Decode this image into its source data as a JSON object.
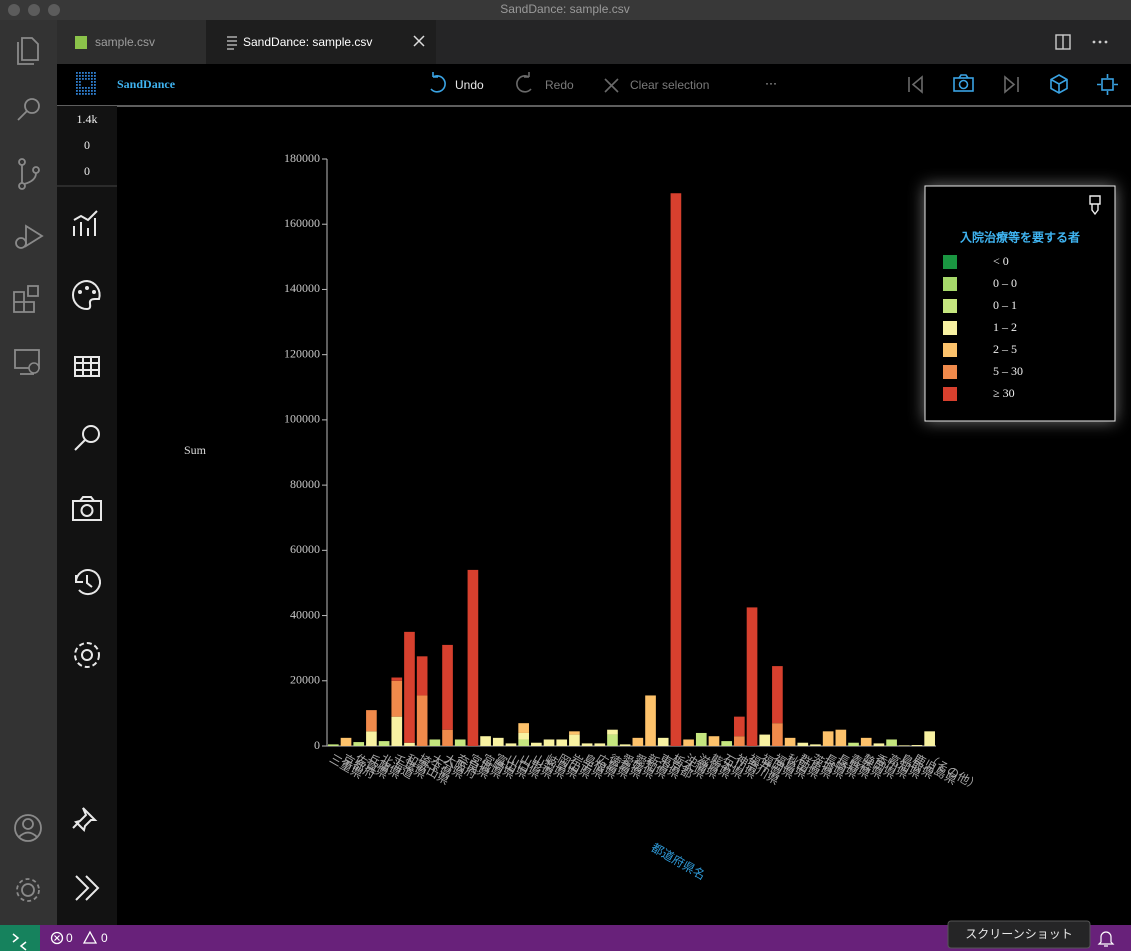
{
  "window_title": "SandDance: sample.csv",
  "tabs": [
    "sample.csv",
    "SandDance: sample.csv"
  ],
  "toolbar": {
    "brand": "SandDance",
    "undo": "Undo",
    "redo": "Redo",
    "clear": "Clear selection",
    "more": "···"
  },
  "counts": [
    "1.4k",
    "0",
    "0"
  ],
  "status": {
    "errors": "0",
    "warnings": "0"
  },
  "tooltip": "スクリーンショット",
  "chart_data": {
    "type": "bar",
    "stacked": true,
    "y_label": "Sum",
    "x_label": "都道府県名",
    "legend_title": "入院治療等を要する者",
    "legend": "upper right",
    "grid": false,
    "ylim": [
      0,
      180000
    ],
    "yticks": [
      0,
      20000,
      40000,
      60000,
      80000,
      100000,
      120000,
      140000,
      160000,
      180000
    ],
    "categories": [
      "三重県",
      "京都府",
      "佐賀県",
      "兵庫県",
      "北海道",
      "千葉県",
      "和歌山県",
      "埼玉県",
      "大分県",
      "大阪府",
      "奈良県",
      "宮城県",
      "宮崎県",
      "富山県",
      "山口県",
      "山形県",
      "山梨県",
      "岐阜県",
      "岡山県",
      "岩手県",
      "島根県",
      "広島県",
      "徳島県",
      "愛媛県",
      "愛知県",
      "新潟県",
      "東京都",
      "栃木県",
      "沖縄県",
      "滋賀県",
      "熊本県",
      "石川県",
      "神奈川県",
      "福井県",
      "福岡県",
      "福島県",
      "秋田県",
      "群馬県",
      "茨城県",
      "長崎県",
      "長野県",
      "青森県",
      "静岡県",
      "香川県",
      "高知県",
      "鳥取県",
      "鹿児島県",
      "（その他）"
    ],
    "series": [
      {
        "name": "< 0",
        "color": "#1a9641",
        "values": [
          0,
          0,
          0,
          0,
          0,
          0,
          0,
          0,
          0,
          0,
          0,
          0,
          0,
          0,
          0,
          0,
          0,
          0,
          0,
          0,
          0,
          0,
          0,
          0,
          0,
          0,
          0,
          0,
          0,
          0,
          0,
          0,
          0,
          0,
          0,
          0,
          0,
          0,
          0,
          0,
          0,
          0,
          0,
          0,
          0,
          0,
          0,
          0
        ]
      },
      {
        "name": "0 – 0",
        "color": "#a6d96a",
        "values": [
          0,
          0,
          0,
          0,
          0,
          0,
          0,
          0,
          0,
          0,
          0,
          0,
          0,
          0,
          0,
          0,
          0,
          0,
          0,
          0,
          0,
          0,
          0,
          0,
          0,
          0,
          0,
          0,
          0,
          0,
          0,
          0,
          0,
          0,
          0,
          0,
          0,
          0,
          0,
          0,
          0,
          0,
          0,
          0,
          0,
          0,
          0,
          0
        ]
      },
      {
        "name": "0 – 1",
        "color": "#c5e67f",
        "values": [
          500,
          0,
          1200,
          0,
          1500,
          0,
          0,
          0,
          2000,
          0,
          2000,
          0,
          0,
          0,
          0,
          2000,
          0,
          0,
          0,
          0,
          0,
          0,
          3500,
          0,
          0,
          0,
          0,
          0,
          0,
          4000,
          0,
          1500,
          0,
          0,
          0,
          0,
          0,
          0,
          0,
          0,
          0,
          1000,
          0,
          0,
          2000,
          0,
          0,
          0
        ]
      },
      {
        "name": "1 – 2",
        "color": "#f8f2a2",
        "values": [
          0,
          0,
          0,
          4500,
          0,
          9000,
          1000,
          0,
          0,
          0,
          0,
          0,
          3000,
          2500,
          800,
          2000,
          1000,
          2000,
          2000,
          3500,
          800,
          800,
          1500,
          500,
          0,
          0,
          2500,
          0,
          0,
          0,
          0,
          0,
          0,
          0,
          3500,
          0,
          0,
          1000,
          500,
          0,
          0,
          0,
          0,
          800,
          0,
          200,
          300,
          4500
        ]
      },
      {
        "name": "2 – 5",
        "color": "#fdc26b",
        "values": [
          0,
          2500,
          0,
          0,
          0,
          0,
          0,
          0,
          0,
          0,
          0,
          0,
          0,
          0,
          0,
          3000,
          0,
          0,
          0,
          1000,
          0,
          0,
          0,
          0,
          2500,
          15500,
          0,
          0,
          2000,
          0,
          3000,
          0,
          0,
          0,
          0,
          0,
          2500,
          0,
          0,
          4500,
          5000,
          0,
          2500,
          0,
          0,
          0,
          0,
          0
        ]
      },
      {
        "name": "5 – 30",
        "color": "#f08a4b",
        "values": [
          0,
          0,
          0,
          6500,
          0,
          11000,
          0,
          15500,
          0,
          5000,
          0,
          0,
          0,
          0,
          0,
          0,
          0,
          0,
          0,
          0,
          0,
          0,
          0,
          0,
          0,
          0,
          0,
          0,
          0,
          0,
          0,
          0,
          3000,
          0,
          0,
          7000,
          0,
          0,
          0,
          0,
          0,
          0,
          0,
          0,
          0,
          0,
          0,
          0
        ]
      },
      {
        "name": "≥ 30",
        "color": "#d7402e",
        "values": [
          0,
          0,
          0,
          0,
          0,
          1000,
          34000,
          12000,
          0,
          26000,
          0,
          54000,
          0,
          0,
          0,
          0,
          0,
          0,
          0,
          0,
          0,
          0,
          0,
          0,
          0,
          0,
          0,
          169500,
          0,
          0,
          0,
          0,
          6000,
          42500,
          0,
          17500,
          0,
          0,
          0,
          0,
          0,
          0,
          0,
          0,
          0,
          0,
          0,
          0
        ]
      }
    ]
  }
}
